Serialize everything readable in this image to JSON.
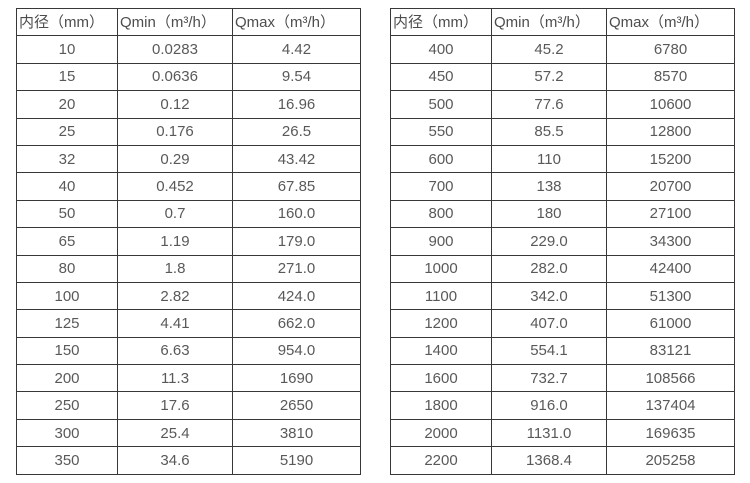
{
  "tables": [
    {
      "name": "flow-range-table-left",
      "headers": [
        "内径（mm）",
        "Qmin（m³/h）",
        "Qmax（m³/h）"
      ],
      "rows": [
        [
          "10",
          "0.0283",
          "4.42"
        ],
        [
          "15",
          "0.0636",
          "9.54"
        ],
        [
          "20",
          "0.12",
          "16.96"
        ],
        [
          "25",
          "0.176",
          "26.5"
        ],
        [
          "32",
          "0.29",
          "43.42"
        ],
        [
          "40",
          "0.452",
          "67.85"
        ],
        [
          "50",
          "0.7",
          "160.0"
        ],
        [
          "65",
          "1.19",
          "179.0"
        ],
        [
          "80",
          "1.8",
          "271.0"
        ],
        [
          "100",
          "2.82",
          "424.0"
        ],
        [
          "125",
          "4.41",
          "662.0"
        ],
        [
          "150",
          "6.63",
          "954.0"
        ],
        [
          "200",
          "11.3",
          "1690"
        ],
        [
          "250",
          "17.6",
          "2650"
        ],
        [
          "300",
          "25.4",
          "3810"
        ],
        [
          "350",
          "34.6",
          "5190"
        ]
      ]
    },
    {
      "name": "flow-range-table-right",
      "headers": [
        "内径（mm）",
        "Qmin（m³/h）",
        "Qmax（m³/h）"
      ],
      "rows": [
        [
          "400",
          "45.2",
          "6780"
        ],
        [
          "450",
          "57.2",
          "8570"
        ],
        [
          "500",
          "77.6",
          "10600"
        ],
        [
          "550",
          "85.5",
          "12800"
        ],
        [
          "600",
          "110",
          "15200"
        ],
        [
          "700",
          "138",
          "20700"
        ],
        [
          "800",
          "180",
          "27100"
        ],
        [
          "900",
          "229.0",
          "34300"
        ],
        [
          "1000",
          "282.0",
          "42400"
        ],
        [
          "1100",
          "342.0",
          "51300"
        ],
        [
          "1200",
          "407.0",
          "61000"
        ],
        [
          "1400",
          "554.1",
          "83121"
        ],
        [
          "1600",
          "732.7",
          "108566"
        ],
        [
          "1800",
          "916.0",
          "137404"
        ],
        [
          "2000",
          "1131.0",
          "169635"
        ],
        [
          "2200",
          "1368.4",
          "205258"
        ]
      ]
    }
  ]
}
